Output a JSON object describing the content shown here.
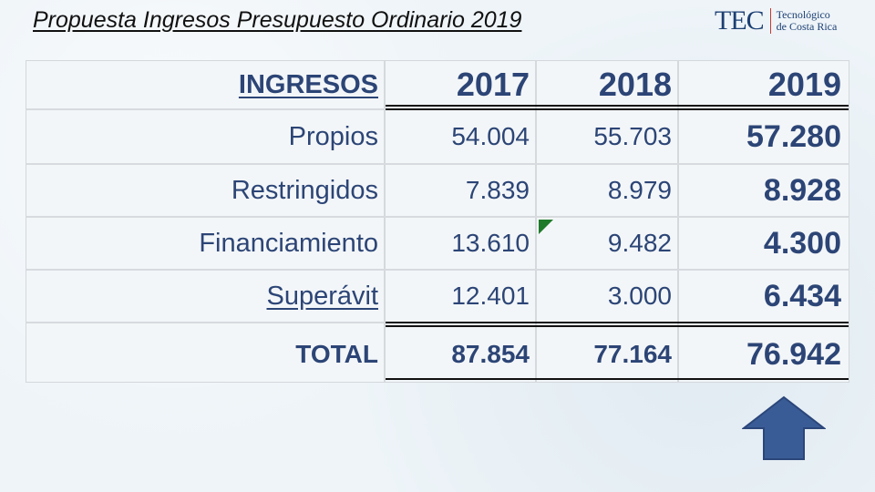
{
  "slide": {
    "title": "Propuesta Ingresos Presupuesto Ordinario 2019"
  },
  "logo": {
    "mark": "TEC",
    "line1": "Tecnológico",
    "line2": "de Costa Rica"
  },
  "table": {
    "headers": [
      "INGRESOS",
      "2017",
      "2018",
      "2019"
    ],
    "rows": [
      {
        "label": "Propios",
        "y2017": "54.004",
        "y2018": "55.703",
        "y2019": "57.280"
      },
      {
        "label": "Restringidos",
        "y2017": "7.839",
        "y2018": "8.979",
        "y2019": "8.928"
      },
      {
        "label": "Financiamiento",
        "y2017": "13.610",
        "y2018": "9.482",
        "y2019": "4.300"
      },
      {
        "label": "Superávit",
        "y2017": "12.401",
        "y2018": "3.000",
        "y2019": "6.434"
      }
    ],
    "total": {
      "label": "TOTAL",
      "y2017": "87.854",
      "y2018": "77.164",
      "y2019": "76.942"
    }
  },
  "colors": {
    "table_text": "#2c4576",
    "arrow_fill": "#3a5c96",
    "comment_flag": "#1e7b2a"
  },
  "icons": {
    "up_arrow": "up-arrow-icon",
    "comment_flag": "cell-comment-flag-icon"
  }
}
